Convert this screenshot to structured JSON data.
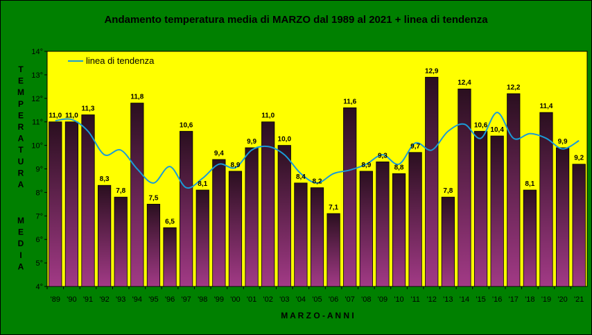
{
  "chart_data": {
    "type": "bar",
    "title": "Andamento temperatura media di MARZO dal 1989 al 2021 + linea di tendenza",
    "xlabel": "M A R Z O - A N N I",
    "ylabel_top": [
      "T",
      "E",
      "M",
      "P",
      "E",
      "R",
      "A",
      "T",
      "U",
      "R",
      "A"
    ],
    "ylabel_bottom": [
      "M",
      "E",
      "D",
      "I",
      "A"
    ],
    "ylim": [
      4,
      14
    ],
    "y_ticks": [
      "4°",
      "5°",
      "6°",
      "7°",
      "8°",
      "9°",
      "10°",
      "11°",
      "12°",
      "13°",
      "14°"
    ],
    "categories": [
      "'89",
      "'90",
      "'91",
      "'92",
      "'93",
      "'94",
      "'95",
      "'96",
      "'97",
      "'98",
      "'99",
      "'00",
      "'01",
      "'02",
      "'03",
      "'04",
      "'05",
      "'06",
      "'07",
      "'08",
      "'09",
      "'10",
      "'11",
      "'12",
      "'13",
      "'14",
      "'15",
      "'16",
      "'17",
      "'18",
      "'19",
      "'20",
      "'21"
    ],
    "values": [
      11.0,
      11.0,
      11.3,
      8.3,
      7.8,
      11.8,
      7.5,
      6.5,
      10.6,
      8.1,
      9.4,
      8.9,
      9.9,
      11.0,
      10.0,
      8.4,
      8.2,
      7.1,
      11.6,
      8.9,
      9.3,
      8.8,
      9.7,
      12.9,
      7.8,
      12.4,
      10.6,
      10.4,
      12.2,
      8.1,
      11.4,
      9.9,
      9.2
    ],
    "value_labels": [
      "11,0",
      "11,0",
      "11,3",
      "8,3",
      "7,8",
      "11,8",
      "7,5",
      "6,5",
      "10,6",
      "8,1",
      "9,4",
      "8,9",
      "9,9",
      "11,0",
      "10,0",
      "8,4",
      "8,2",
      "7,1",
      "11,6",
      "8,9",
      "9,3",
      "8,8",
      "9,7",
      "12,9",
      "7,8",
      "12,4",
      "10,6",
      "10,4",
      "12,2",
      "8,1",
      "11,4",
      "9,9",
      "9,2"
    ],
    "trend_name": "linea di tendenza",
    "trend_values": [
      11.05,
      11.1,
      10.6,
      9.6,
      9.8,
      9.0,
      8.4,
      9.1,
      8.2,
      8.6,
      9.2,
      9.05,
      9.8,
      9.95,
      9.6,
      8.8,
      8.4,
      8.8,
      8.95,
      9.2,
      9.6,
      9.2,
      10.1,
      9.8,
      10.6,
      10.9,
      10.3,
      11.4,
      10.3,
      10.5,
      10.3,
      9.85,
      10.2
    ]
  },
  "colors": {
    "background": "#008000",
    "plot_area": "#ffff00",
    "bar_top": "#2a0f1f",
    "bar_bottom": "#a23a86",
    "trend": "#1a9bd7"
  }
}
